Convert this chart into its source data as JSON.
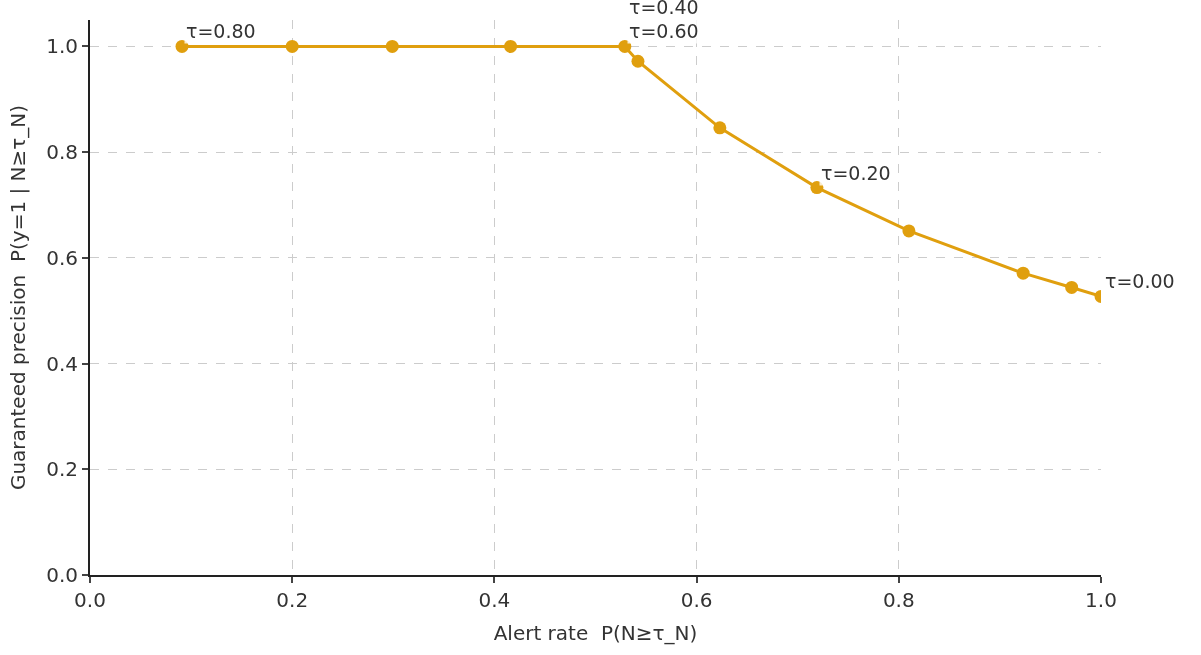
{
  "chart_data": {
    "type": "line",
    "xlabel": "Alert rate  P(N≥τ_N)",
    "ylabel": "Guaranteed precision  P(y=1 | N≥τ_N)",
    "x": [
      0.091,
      0.2,
      0.299,
      0.416,
      0.529,
      0.542,
      0.623,
      0.719,
      0.81,
      0.923,
      0.971,
      1.0
    ],
    "series": [
      {
        "color": "#e09f0e",
        "values": [
          1.0,
          1.0,
          1.0,
          1.0,
          1.0,
          0.972,
          0.846,
          0.733,
          0.651,
          0.571,
          0.544,
          0.527
        ]
      }
    ],
    "xlim": [
      0,
      1
    ],
    "ylim": [
      0,
      1.05
    ],
    "xticks": [
      {
        "value": 0,
        "label": "0.0"
      },
      0.2,
      0.4,
      0.6,
      0.8,
      {
        "value": 1,
        "label": "1.0"
      }
    ],
    "yticks": [
      {
        "value": 0,
        "label": "0.0"
      },
      0.2,
      0.4,
      0.6,
      0.8,
      {
        "value": 1,
        "label": "1.0"
      }
    ],
    "grid": true,
    "marker": "circle",
    "line_style": "solid",
    "annotations": [
      {
        "text": "τ=0.80",
        "x": 0.091,
        "y": 1.0
      },
      {
        "text": "τ=0.60",
        "x": 0.529,
        "y": 1.0
      },
      {
        "text": "τ=0.40",
        "x": 0.529,
        "y": 1.0
      },
      {
        "text": "τ=0.20",
        "x": 0.719,
        "y": 0.733
      },
      {
        "text": "τ=0.00",
        "x": 1.0,
        "y": 0.527
      }
    ]
  }
}
